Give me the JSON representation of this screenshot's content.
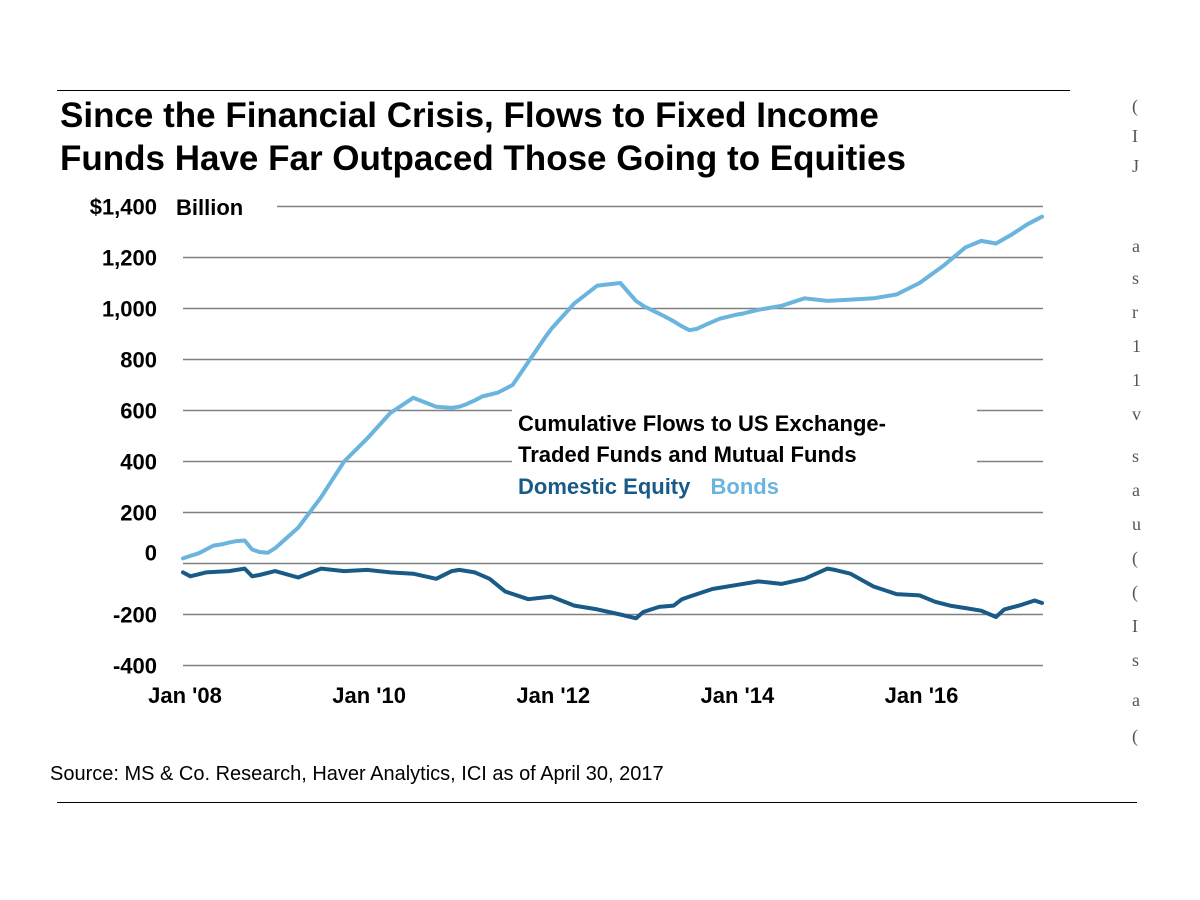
{
  "title_lines": [
    "Since the Financial Crisis, Flows to Fixed Income",
    "Funds Have Far Outpaced Those Going to Equities"
  ],
  "source": "Source: MS & Co. Research, Haver Analytics, ICI as of April 30, 2017",
  "right_column_glyphs": [
    "(",
    "I",
    "J",
    "a",
    "s",
    "r",
    "1",
    "1",
    "v",
    "s",
    "a",
    "u",
    "(",
    "(",
    "I",
    "s",
    "a",
    "("
  ],
  "colors": {
    "equity": "#1a5a87",
    "bonds": "#6ab4de",
    "grid": "#808080",
    "text": "#000000"
  },
  "chart_data": {
    "type": "line",
    "unit_label": "Billion",
    "y_tick_labels": [
      "$1,400",
      "1,200",
      "1,000",
      "800",
      "600",
      "400",
      "200",
      "0",
      "-200",
      "-400"
    ],
    "y_tick_values": [
      1400,
      1200,
      1000,
      800,
      600,
      400,
      200,
      0,
      -200,
      -400
    ],
    "ylim": [
      -400,
      1400
    ],
    "x_tick_labels": [
      "Jan '08",
      "Jan '10",
      "Jan '12",
      "Jan '14",
      "Jan '16"
    ],
    "x_tick_values": [
      2008,
      2010,
      2012,
      2014,
      2016
    ],
    "xlim": [
      2008,
      2017.33
    ],
    "annotation": {
      "lines": [
        "Cumulative Flows to US Exchange-",
        "Traded Funds and Mutual Funds"
      ],
      "legend": [
        {
          "name": "Domestic Equity",
          "color": "#1a5a87"
        },
        {
          "name": "Bonds",
          "color": "#6ab4de"
        }
      ]
    },
    "series": [
      {
        "name": "Bonds",
        "color": "#6ab4de",
        "x": [
          2008.0,
          2008.08,
          2008.17,
          2008.25,
          2008.33,
          2008.42,
          2008.5,
          2008.58,
          2008.67,
          2008.75,
          2008.83,
          2008.92,
          2009.0,
          2009.25,
          2009.5,
          2009.75,
          2010.0,
          2010.25,
          2010.5,
          2010.75,
          2010.92,
          2011.0,
          2011.08,
          2011.17,
          2011.25,
          2011.42,
          2011.58,
          2011.75,
          2011.92,
          2012.0,
          2012.25,
          2012.5,
          2012.75,
          2012.92,
          2013.0,
          2013.17,
          2013.25,
          2013.33,
          2013.42,
          2013.5,
          2013.58,
          2013.67,
          2013.83,
          2014.0,
          2014.08,
          2014.25,
          2014.5,
          2014.75,
          2015.0,
          2015.25,
          2015.5,
          2015.75,
          2016.0,
          2016.25,
          2016.5,
          2016.67,
          2016.83,
          2017.0,
          2017.17,
          2017.33
        ],
        "values": [
          20,
          30,
          40,
          55,
          70,
          75,
          82,
          88,
          90,
          55,
          45,
          42,
          60,
          140,
          260,
          400,
          490,
          590,
          650,
          615,
          610,
          615,
          625,
          640,
          655,
          670,
          700,
          790,
          880,
          920,
          1020,
          1090,
          1100,
          1030,
          1010,
          980,
          965,
          950,
          930,
          915,
          920,
          935,
          960,
          975,
          980,
          995,
          1010,
          1040,
          1030,
          1035,
          1040,
          1055,
          1100,
          1165,
          1240,
          1265,
          1255,
          1290,
          1330,
          1360
        ]
      },
      {
        "name": "Domestic Equity",
        "color": "#1a5a87",
        "x": [
          2008.0,
          2008.08,
          2008.25,
          2008.5,
          2008.67,
          2008.75,
          2008.83,
          2009.0,
          2009.25,
          2009.5,
          2009.75,
          2010.0,
          2010.25,
          2010.5,
          2010.75,
          2010.92,
          2011.0,
          2011.17,
          2011.33,
          2011.5,
          2011.75,
          2012.0,
          2012.25,
          2012.5,
          2012.75,
          2012.92,
          2013.0,
          2013.17,
          2013.33,
          2013.42,
          2013.5,
          2013.75,
          2014.0,
          2014.25,
          2014.5,
          2014.75,
          2015.0,
          2015.08,
          2015.25,
          2015.5,
          2015.75,
          2016.0,
          2016.17,
          2016.33,
          2016.5,
          2016.67,
          2016.83,
          2016.92,
          2017.08,
          2017.25,
          2017.33
        ],
        "values": [
          -35,
          -50,
          -35,
          -30,
          -20,
          -50,
          -45,
          -30,
          -55,
          -20,
          -30,
          -25,
          -35,
          -40,
          -60,
          -30,
          -25,
          -35,
          -60,
          -110,
          -140,
          -130,
          -165,
          -180,
          -200,
          -215,
          -190,
          -170,
          -165,
          -140,
          -130,
          -100,
          -85,
          -70,
          -80,
          -60,
          -20,
          -25,
          -40,
          -90,
          -120,
          -125,
          -150,
          -165,
          -175,
          -185,
          -210,
          -180,
          -165,
          -145,
          -155
        ]
      }
    ]
  }
}
